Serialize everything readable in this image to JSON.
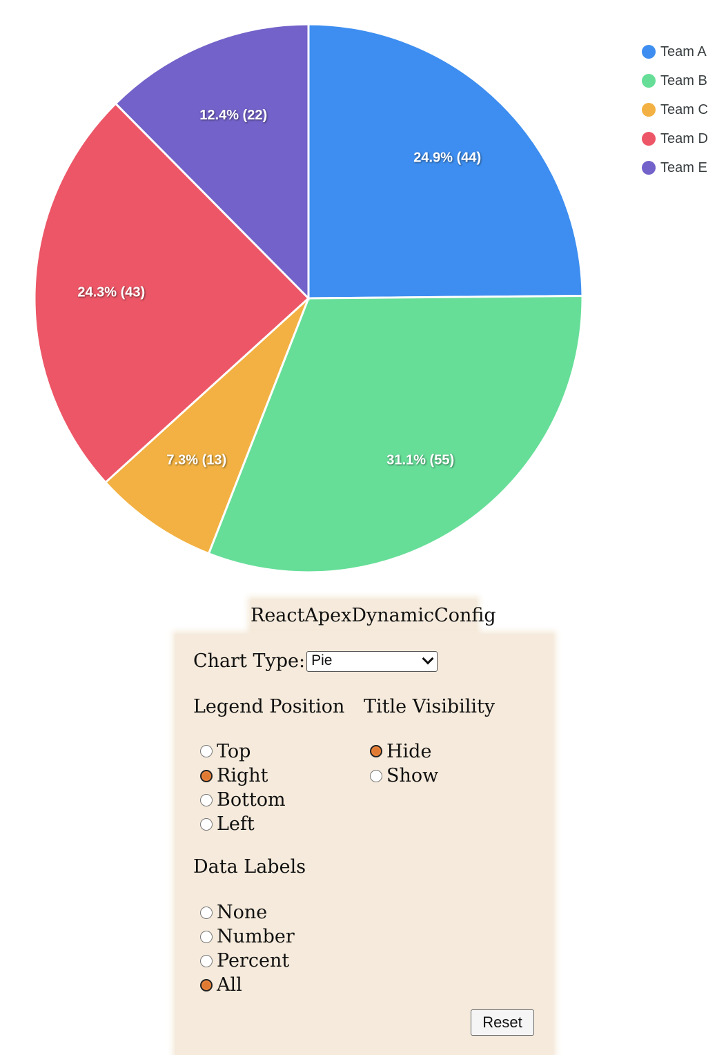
{
  "chart_data": {
    "type": "pie",
    "categories": [
      "Team A",
      "Team B",
      "Team C",
      "Team D",
      "Team E"
    ],
    "values": [
      44,
      55,
      13,
      43,
      22
    ],
    "data_labels": [
      "24.9% (44)",
      "31.1% (55)",
      "7.3% (13)",
      "24.3% (43)",
      "12.4% (22)"
    ],
    "colors": [
      "#3d8ef0",
      "#66de98",
      "#f2b142",
      "#ec5666",
      "#7262c9"
    ],
    "legend_position": "right",
    "title": ""
  },
  "legend": {
    "items": [
      "Team A",
      "Team B",
      "Team C",
      "Team D",
      "Team E"
    ]
  },
  "config": {
    "title": "ReactApexDynamicConfig",
    "chart_type_label": "Chart Type:",
    "chart_type_value": "Pie",
    "legend_position": {
      "title": "Legend Position",
      "options": [
        "Top",
        "Right",
        "Bottom",
        "Left"
      ],
      "selected": "Right"
    },
    "title_visibility": {
      "title": "Title Visibility",
      "options": [
        "Hide",
        "Show"
      ],
      "selected": "Hide"
    },
    "data_labels": {
      "title": "Data Labels",
      "options": [
        "None",
        "Number",
        "Percent",
        "All"
      ],
      "selected": "All"
    },
    "reset_label": "Reset"
  }
}
